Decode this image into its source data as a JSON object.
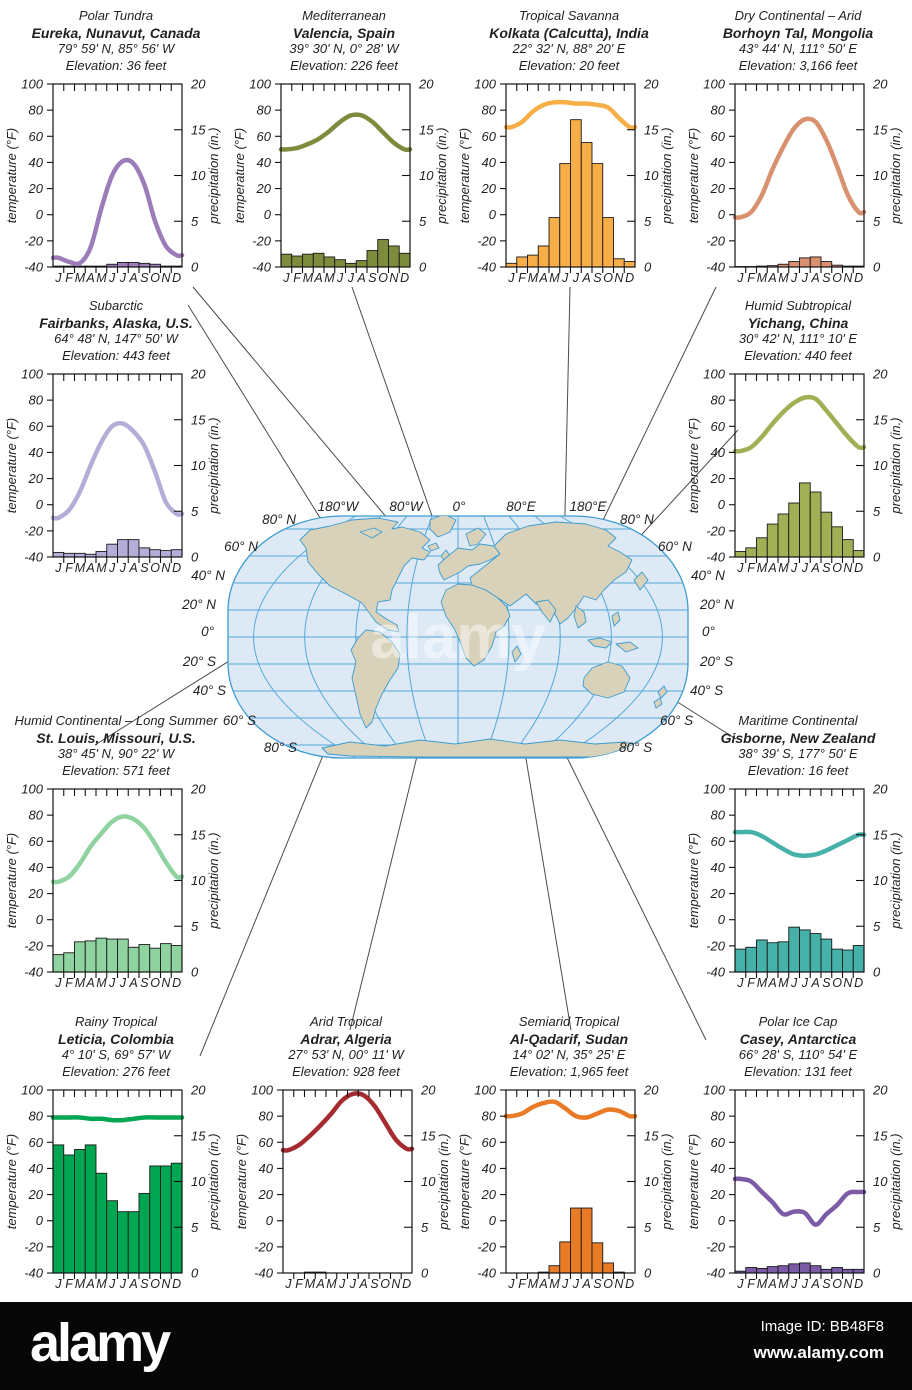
{
  "footer": {
    "brand": "alamy",
    "image_id": "Image ID: BB48F8",
    "url": "www.alamy.com"
  },
  "map": {
    "top_labels": [
      "180°W",
      "80°W",
      "0°",
      "80°E",
      "180°E"
    ],
    "lat_labels": [
      "80° N",
      "60° N",
      "40° N",
      "20° N",
      "0°",
      "20° S",
      "40° S",
      "60° S",
      "80° S"
    ],
    "ocean_color": "#ddeaf6",
    "land_color": "#d9d2ba",
    "grid_color": "#55a8d8"
  },
  "chart_data": {
    "type": "climograph-grid (line = temperature, bar = precipitation)",
    "months": [
      "J",
      "F",
      "M",
      "A",
      "M",
      "J",
      "J",
      "A",
      "S",
      "O",
      "N",
      "D"
    ],
    "temp_axis": {
      "label": "temperature (°F)",
      "ticks": [
        100,
        80,
        60,
        40,
        20,
        0,
        -20,
        -40
      ],
      "range": [
        -40,
        100
      ]
    },
    "precip_axis": {
      "label": "precipitation (in.)",
      "ticks": [
        20,
        15,
        10,
        5,
        0
      ],
      "range": [
        0,
        20
      ]
    },
    "stations": [
      {
        "id": "eureka",
        "climate": "Polar Tundra",
        "station": "Eureka, Nunavut, Canada",
        "coords": "79° 59' N, 85° 56' W",
        "elevation": "Elevation: 36 feet",
        "color": "#9c7cb8",
        "temps_f": [
          -33,
          -36,
          -37,
          -25,
          5,
          30,
          41,
          39,
          23,
          -5,
          -24,
          -31
        ],
        "precip_in": [
          0.1,
          0.1,
          0.1,
          0.1,
          0.1,
          0.3,
          0.5,
          0.5,
          0.4,
          0.3,
          0.1,
          0.1
        ]
      },
      {
        "id": "valencia",
        "climate": "Mediterranean",
        "station": "Valencia, Spain",
        "coords": "39° 30' N, 0° 28' W",
        "elevation": "Elevation: 226 feet",
        "color": "#7d8b3c",
        "temps_f": [
          50,
          51,
          54,
          58,
          64,
          71,
          76,
          76,
          71,
          63,
          55,
          50
        ],
        "precip_in": [
          1.4,
          1.2,
          1.4,
          1.5,
          1.1,
          0.8,
          0.4,
          0.7,
          1.8,
          3.0,
          2.3,
          1.5
        ]
      },
      {
        "id": "kolkata",
        "climate": "Tropical Savanna",
        "station": "Kolkata (Calcutta), India",
        "coords": "22° 32' N, 88° 20' E",
        "elevation": "Elevation: 20 feet",
        "color": "#f7ae47",
        "temps_f": [
          67,
          71,
          79,
          84,
          86,
          86,
          85,
          85,
          84,
          82,
          74,
          67
        ],
        "precip_in": [
          0.4,
          1.1,
          1.3,
          2.3,
          5.4,
          11.3,
          16.1,
          13.6,
          11.3,
          5.4,
          0.9,
          0.6
        ]
      },
      {
        "id": "borhoyn",
        "climate": "Dry Continental – Arid",
        "station": "Borhoyn Tal, Mongolia",
        "coords": "43° 44' N, 111° 50' E",
        "elevation": "Elevation: 3,166 feet",
        "color": "#d9906e",
        "temps_f": [
          -2,
          2,
          15,
          35,
          52,
          66,
          73,
          71,
          57,
          37,
          15,
          2
        ],
        "precip_in": [
          0.05,
          0.05,
          0.1,
          0.15,
          0.3,
          0.6,
          1.0,
          1.1,
          0.6,
          0.2,
          0.1,
          0.1
        ]
      },
      {
        "id": "fairbanks",
        "climate": "Subarctic",
        "station": "Fairbanks, Alaska, U.S.",
        "coords": "64° 48' N, 147° 50' W",
        "elevation": "Elevation: 443 feet",
        "color": "#b5add8",
        "temps_f": [
          -10,
          -4,
          10,
          30,
          48,
          60,
          62,
          56,
          45,
          25,
          2,
          -7
        ],
        "precip_in": [
          0.5,
          0.4,
          0.4,
          0.3,
          0.6,
          1.4,
          1.9,
          1.9,
          1.0,
          0.8,
          0.7,
          0.8
        ]
      },
      {
        "id": "yichang",
        "climate": "Humid Subtropical",
        "station": "Yichang, China",
        "coords": "30° 42' N, 111° 10' E",
        "elevation": "Elevation: 440 feet",
        "color": "#a2b055",
        "temps_f": [
          41,
          44,
          52,
          62,
          71,
          78,
          82,
          81,
          72,
          62,
          52,
          44
        ],
        "precip_in": [
          0.6,
          1.0,
          2.1,
          3.6,
          4.7,
          5.9,
          8.1,
          7.1,
          4.9,
          3.3,
          1.9,
          0.7
        ]
      },
      {
        "id": "stlouis",
        "climate": "Humid Continental – Long Summer",
        "station": "St. Louis, Missouri, U.S.",
        "coords": "38° 45' N, 90° 22' W",
        "elevation": "Elevation: 571 feet",
        "color": "#8fd3a0",
        "temps_f": [
          29,
          33,
          43,
          56,
          66,
          75,
          79,
          77,
          70,
          58,
          44,
          33
        ],
        "precip_in": [
          1.9,
          2.1,
          3.3,
          3.4,
          3.7,
          3.6,
          3.6,
          2.7,
          3.0,
          2.6,
          3.1,
          2.9
        ]
      },
      {
        "id": "gisborne",
        "climate": "Maritime Continental",
        "station": "Gisborne, New Zealand",
        "coords": "38° 39' S, 177° 50' E",
        "elevation": "Elevation: 16 feet",
        "color": "#45b1a8",
        "temps_f": [
          67,
          67,
          64,
          59,
          54,
          50,
          49,
          50,
          53,
          57,
          61,
          65
        ],
        "precip_in": [
          2.5,
          2.7,
          3.5,
          3.2,
          3.3,
          4.9,
          4.6,
          4.2,
          3.6,
          2.5,
          2.4,
          2.9
        ]
      },
      {
        "id": "leticia",
        "climate": "Rainy Tropical",
        "station": "Leticia, Colombia",
        "coords": "4° 10' S, 69° 57' W",
        "elevation": "Elevation: 276 feet",
        "color": "#00a651",
        "temps_f": [
          79,
          79,
          79,
          78,
          78,
          77,
          77,
          78,
          79,
          79,
          79,
          79
        ],
        "precip_in": [
          14.0,
          12.9,
          13.5,
          14.0,
          10.9,
          7.9,
          6.7,
          6.7,
          8.7,
          11.7,
          11.7,
          12.0
        ]
      },
      {
        "id": "adrar",
        "climate": "Arid Tropical",
        "station": "Adrar, Algeria",
        "coords": "27° 53' N, 00° 11' W",
        "elevation": "Elevation: 928 feet",
        "color": "#a62b30",
        "temps_f": [
          54,
          58,
          65,
          73,
          82,
          92,
          97,
          96,
          88,
          75,
          62,
          55
        ],
        "precip_in": [
          0,
          0,
          0.1,
          0.1,
          0,
          0,
          0,
          0,
          0,
          0,
          0,
          0
        ]
      },
      {
        "id": "alqadarif",
        "climate": "Semiarid Tropical",
        "station": "Al-Qadarif, Sudan",
        "coords": "14° 02' N, 35° 25' E",
        "elevation": "Elevation: 1,965 feet",
        "color": "#e97b26",
        "temps_f": [
          80,
          82,
          87,
          90,
          91,
          86,
          80,
          79,
          82,
          85,
          84,
          80
        ],
        "precip_in": [
          0,
          0,
          0,
          0.1,
          0.8,
          3.4,
          7.1,
          7.1,
          3.3,
          1.1,
          0.1,
          0
        ]
      },
      {
        "id": "casey",
        "climate": "Polar Ice Cap",
        "station": "Casey, Antarctica",
        "coords": "66° 28' S, 110° 54' E",
        "elevation": "Elevation: 131 feet",
        "color": "#7b5aa6",
        "temps_f": [
          32,
          30,
          22,
          14,
          5,
          7,
          6,
          -3,
          5,
          12,
          21,
          22
        ],
        "precip_in": [
          0.2,
          0.6,
          0.5,
          0.7,
          0.8,
          1.0,
          1.1,
          0.8,
          0.4,
          0.6,
          0.4,
          0.4
        ]
      }
    ]
  }
}
